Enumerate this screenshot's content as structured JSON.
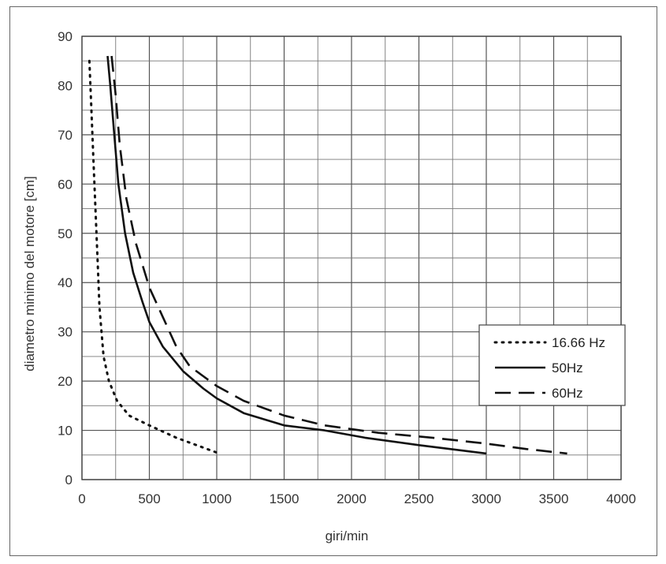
{
  "chart_data": {
    "type": "line",
    "title": "",
    "xlabel": "giri/min",
    "ylabel": "diametro minimo del motore [cm]",
    "xlim": [
      0,
      4000
    ],
    "ylim": [
      0,
      90
    ],
    "xticks": [
      0,
      500,
      1000,
      1500,
      2000,
      2500,
      3000,
      3500,
      4000
    ],
    "yticks": [
      0,
      10,
      20,
      30,
      40,
      50,
      60,
      70,
      80,
      90
    ],
    "grid": true,
    "legend_position": "right",
    "series": [
      {
        "name": "16.66 Hz",
        "style": "dotted",
        "color": "#111111",
        "points": [
          [
            55,
            85
          ],
          [
            70,
            75
          ],
          [
            85,
            65
          ],
          [
            100,
            55
          ],
          [
            115,
            45
          ],
          [
            130,
            35
          ],
          [
            160,
            25
          ],
          [
            200,
            20
          ],
          [
            260,
            16
          ],
          [
            350,
            13
          ],
          [
            500,
            11
          ],
          [
            700,
            8.5
          ],
          [
            850,
            7
          ],
          [
            1000,
            5.5
          ]
        ]
      },
      {
        "name": "50Hz",
        "style": "solid",
        "color": "#111111",
        "points": [
          [
            190,
            86
          ],
          [
            210,
            80
          ],
          [
            240,
            70
          ],
          [
            270,
            60
          ],
          [
            320,
            50
          ],
          [
            380,
            42
          ],
          [
            450,
            36
          ],
          [
            500,
            32
          ],
          [
            600,
            27
          ],
          [
            750,
            22
          ],
          [
            900,
            18.5
          ],
          [
            1000,
            16.5
          ],
          [
            1200,
            13.5
          ],
          [
            1500,
            11
          ],
          [
            1800,
            10
          ],
          [
            2100,
            8.5
          ],
          [
            2500,
            7
          ],
          [
            3000,
            5.3
          ]
        ]
      },
      {
        "name": "60Hz",
        "style": "dashed",
        "color": "#111111",
        "points": [
          [
            220,
            86
          ],
          [
            250,
            78
          ],
          [
            280,
            68
          ],
          [
            330,
            57
          ],
          [
            400,
            48
          ],
          [
            500,
            39
          ],
          [
            600,
            33
          ],
          [
            700,
            27
          ],
          [
            800,
            23
          ],
          [
            1000,
            19
          ],
          [
            1200,
            16
          ],
          [
            1500,
            13
          ],
          [
            1800,
            11
          ],
          [
            2200,
            9.5
          ],
          [
            2600,
            8.5
          ],
          [
            3000,
            7.3
          ],
          [
            3300,
            6.2
          ],
          [
            3600,
            5.3
          ]
        ]
      }
    ]
  }
}
